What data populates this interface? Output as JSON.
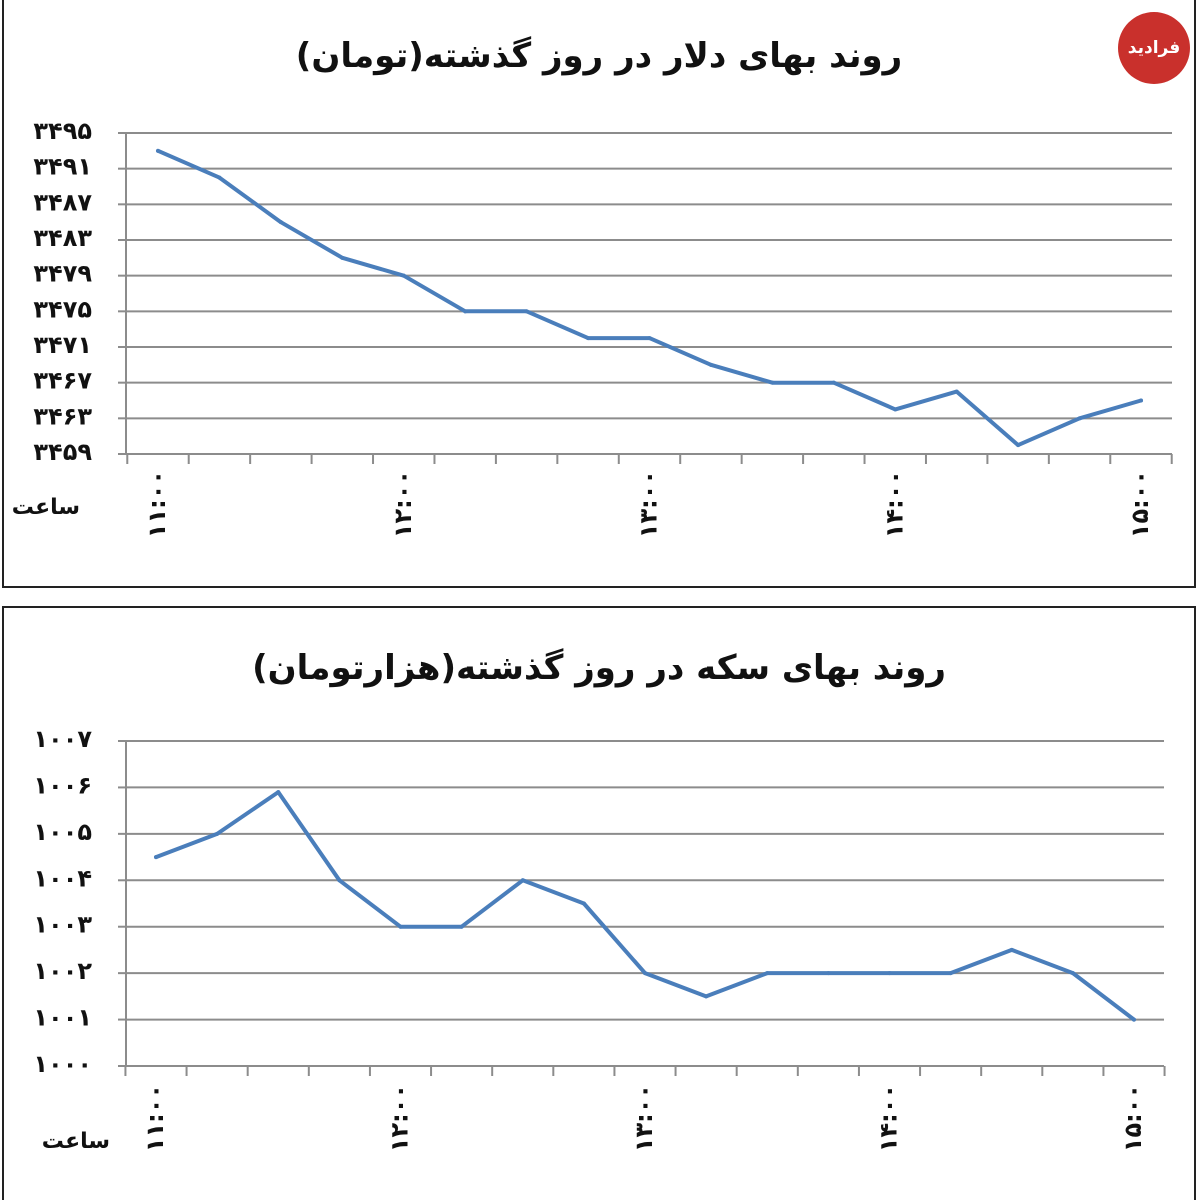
{
  "logo": {
    "text": "فرادید",
    "color": "#c9302c"
  },
  "colors": {
    "series": "#4a7ebb",
    "grid": "#8c8c8c"
  },
  "chart_data": [
    {
      "type": "line",
      "title": "روند بهای دلار در روز گذشته(تومان)",
      "xlabel": "ساعت",
      "ylabel": "",
      "ylim": [
        3459,
        3495
      ],
      "yticks": [
        3459,
        3463,
        3467,
        3471,
        3475,
        3479,
        3483,
        3487,
        3491,
        3495
      ],
      "ytick_labels": [
        "۳۴۵۹",
        "۳۴۶۳",
        "۳۴۶۷",
        "۳۴۷۱",
        "۳۴۷۵",
        "۳۴۷۹",
        "۳۴۸۳",
        "۳۴۸۷",
        "۳۴۹۱",
        "۳۴۹۵"
      ],
      "xtick_labels": [
        {
          "label": "۱۱:۰۰",
          "index": 0
        },
        {
          "label": "۱۲:۰۰",
          "index": 4
        },
        {
          "label": "۱۳:۰۰",
          "index": 8
        },
        {
          "label": "۱۴:۰۰",
          "index": 12
        },
        {
          "label": "۱۵:۰۰",
          "index": 16
        }
      ],
      "grid": true,
      "series": [
        {
          "values": [
            3493,
            3490,
            3485,
            3481,
            3479,
            3475,
            3475,
            3472,
            3472,
            3469,
            3467,
            3467,
            3464,
            3466,
            3460,
            3463,
            3465
          ]
        }
      ]
    },
    {
      "type": "line",
      "title": "روند بهای سکه در روز گذشته(هزارتومان)",
      "xlabel": "ساعت",
      "ylabel": "",
      "ylim": [
        1000,
        1007
      ],
      "yticks": [
        1000,
        1001,
        1002,
        1003,
        1004,
        1005,
        1006,
        1007
      ],
      "ytick_labels": [
        "۱۰۰۰",
        "۱۰۰۱",
        "۱۰۰۲",
        "۱۰۰۳",
        "۱۰۰۴",
        "۱۰۰۵",
        "۱۰۰۶",
        "۱۰۰۷"
      ],
      "xtick_labels": [
        {
          "label": "۱۱:۰۰",
          "index": 0
        },
        {
          "label": "۱۲:۰۰",
          "index": 4
        },
        {
          "label": "۱۳:۰۰",
          "index": 8
        },
        {
          "label": "۱۴:۰۰",
          "index": 12
        },
        {
          "label": "۱۵:۰۰",
          "index": 16
        }
      ],
      "grid": true,
      "series": [
        {
          "values": [
            1004.5,
            1005,
            1005.9,
            1004,
            1003,
            1003,
            1004,
            1003.5,
            1002,
            1001.5,
            1002,
            1002,
            1002,
            1002,
            1002.5,
            1002,
            1001
          ]
        }
      ]
    }
  ]
}
